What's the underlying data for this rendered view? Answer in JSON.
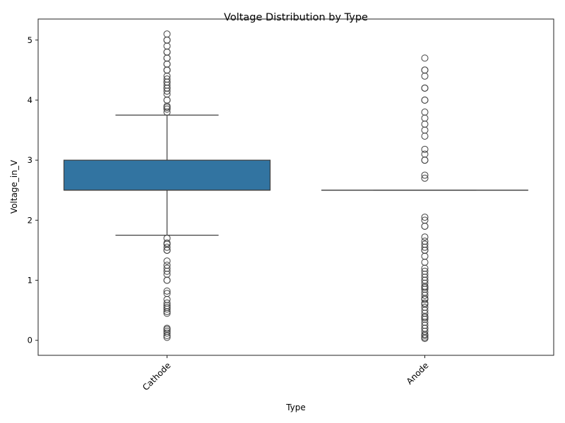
{
  "chart_data": {
    "type": "box",
    "title": "Voltage Distribution by Type",
    "xlabel": "Type",
    "ylabel": "Voltage_in_V",
    "categories": [
      "Cathode",
      "Anode"
    ],
    "ylim": [
      -0.25,
      5.35
    ],
    "yticks": [
      0,
      1,
      2,
      3,
      4,
      5
    ],
    "x_tick_rotation_deg": 45,
    "grid": false,
    "box_color": "#3274a1",
    "line_color": "#3f3f3f",
    "boxes": [
      {
        "category": "Cathode",
        "whisker_low": 1.75,
        "q1": 2.5,
        "median": 2.5,
        "q3": 3.0,
        "whisker_high": 3.75,
        "outliers": [
          5.1,
          5.0,
          5.0,
          4.9,
          4.8,
          4.8,
          4.7,
          4.7,
          4.6,
          4.6,
          4.5,
          4.5,
          4.5,
          4.4,
          4.35,
          4.3,
          4.3,
          4.25,
          4.2,
          4.2,
          4.15,
          4.1,
          4.0,
          4.0,
          3.9,
          3.88,
          3.85,
          3.8,
          1.7,
          1.62,
          1.6,
          1.55,
          1.5,
          1.5,
          1.32,
          1.25,
          1.2,
          1.15,
          1.1,
          1.0,
          1.0,
          0.82,
          0.78,
          0.68,
          0.62,
          0.58,
          0.55,
          0.52,
          0.48,
          0.45,
          0.2,
          0.18,
          0.15,
          0.12,
          0.08,
          0.05
        ]
      },
      {
        "category": "Anode",
        "whisker_low": 2.5,
        "q1": 2.5,
        "median": 2.5,
        "q3": 2.5,
        "whisker_high": 2.5,
        "outliers": [
          4.7,
          4.5,
          4.5,
          4.4,
          4.2,
          4.2,
          4.0,
          4.0,
          3.8,
          3.7,
          3.6,
          3.5,
          3.4,
          3.18,
          3.1,
          3.0,
          3.0,
          2.75,
          2.7,
          2.05,
          2.0,
          1.9,
          1.9,
          1.72,
          1.65,
          1.6,
          1.55,
          1.5,
          1.5,
          1.4,
          1.3,
          1.2,
          1.15,
          1.1,
          1.05,
          1.0,
          1.0,
          0.95,
          0.9,
          0.88,
          0.85,
          0.8,
          0.75,
          0.7,
          0.68,
          0.62,
          0.6,
          0.55,
          0.5,
          0.45,
          0.4,
          0.38,
          0.35,
          0.3,
          0.25,
          0.2,
          0.2,
          0.15,
          0.1,
          0.08,
          0.05,
          0.03
        ]
      }
    ]
  }
}
